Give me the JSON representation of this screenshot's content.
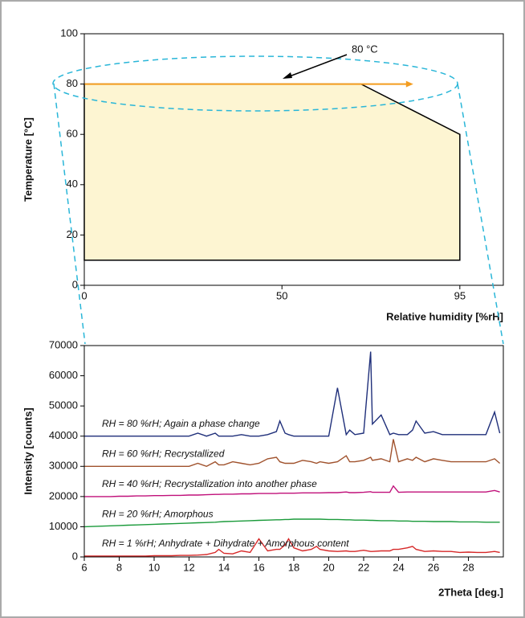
{
  "chart_data": [
    {
      "type": "area",
      "ylabel": "Temperature [°C]",
      "xlabel": "Relative humidity [%rH]",
      "xlim": [
        0,
        106
      ],
      "ylim": [
        0,
        100
      ],
      "xticks": [
        0,
        50,
        95
      ],
      "yticks": [
        0,
        20,
        40,
        60,
        80,
        100
      ],
      "region": {
        "x": [
          0,
          95,
          95,
          70,
          0
        ],
        "y": [
          10,
          10,
          60,
          80,
          80
        ],
        "color": "#fdf5d2"
      },
      "arrow": {
        "x": [
          0,
          82
        ],
        "y": [
          80,
          80
        ],
        "color": "#f39c1f"
      },
      "annotation": "80 °C"
    },
    {
      "type": "line",
      "ylabel": "Intensity [counts]",
      "xlabel": "2Theta [deg.]",
      "xlim": [
        6,
        30
      ],
      "ylim": [
        0,
        70000
      ],
      "xticks": [
        6,
        8,
        10,
        12,
        14,
        16,
        18,
        20,
        22,
        24,
        26,
        28
      ],
      "yticks": [
        0,
        10000,
        20000,
        30000,
        40000,
        50000,
        60000,
        70000
      ],
      "x": [
        6,
        6.5,
        7,
        7.5,
        8,
        8.5,
        9,
        9.5,
        10,
        10.5,
        11,
        11.5,
        12,
        12.5,
        13,
        13.5,
        13.7,
        14,
        14.5,
        15,
        15.5,
        16,
        16.5,
        17,
        17.2,
        17.5,
        17.7,
        18,
        18.5,
        19,
        19.3,
        19.5,
        20,
        20.5,
        21,
        21.2,
        21.5,
        22,
        22.4,
        22.5,
        23,
        23.5,
        23.7,
        24,
        24.5,
        24.8,
        25,
        25.5,
        26,
        26.5,
        27,
        27.5,
        28,
        28.5,
        29,
        29.5,
        29.8
      ],
      "series": [
        {
          "name": "RH = 80 %rH; Again a phase change",
          "color": "#1f2f7a",
          "values": [
            40000,
            40000,
            40000,
            40000,
            40000,
            40000,
            40000,
            40000,
            40000,
            40000,
            40000,
            40000,
            40000,
            41000,
            40000,
            41000,
            40000,
            40000,
            40000,
            40500,
            40000,
            40000,
            40500,
            41500,
            45000,
            41000,
            40500,
            40000,
            40000,
            40000,
            40000,
            40000,
            40000,
            56000,
            40500,
            42000,
            40500,
            41000,
            68000,
            44000,
            47000,
            40500,
            41000,
            40500,
            40500,
            42000,
            45000,
            41000,
            41500,
            40500,
            40500,
            40500,
            40500,
            40500,
            40500,
            48000,
            41000
          ]
        },
        {
          "name": "RH = 60 %rH; Recrystallized",
          "color": "#a0522d",
          "values": [
            30000,
            30000,
            30000,
            30000,
            30000,
            30000,
            30000,
            30000,
            30000,
            30000,
            30000,
            30000,
            30000,
            31000,
            30000,
            31500,
            30500,
            30500,
            31500,
            31000,
            30500,
            31000,
            32500,
            33000,
            31500,
            31000,
            31000,
            31000,
            32000,
            31500,
            31000,
            31500,
            31000,
            31500,
            33500,
            31500,
            31500,
            32000,
            33000,
            32000,
            32500,
            31500,
            39000,
            31500,
            32500,
            32000,
            33000,
            31500,
            32500,
            32000,
            31500,
            31500,
            31500,
            31500,
            31500,
            32500,
            31000
          ]
        },
        {
          "name": "RH = 40 %rH; Recrystallization into another phase",
          "color": "#c0107a",
          "values": [
            20000,
            20000,
            20000,
            20000,
            20100,
            20100,
            20200,
            20200,
            20300,
            20300,
            20400,
            20400,
            20500,
            20500,
            20600,
            20700,
            20700,
            20800,
            20800,
            20900,
            20900,
            21000,
            21000,
            21000,
            21100,
            21100,
            21100,
            21100,
            21200,
            21200,
            21200,
            21200,
            21300,
            21300,
            21500,
            21300,
            21300,
            21400,
            21600,
            21400,
            21400,
            21400,
            23500,
            21400,
            21500,
            21500,
            21500,
            21500,
            21500,
            21500,
            21500,
            21500,
            21500,
            21500,
            21500,
            22000,
            21500
          ]
        },
        {
          "name": "RH = 20 %rH; Amorphous",
          "color": "#1a9a3a",
          "values": [
            10000,
            10100,
            10200,
            10300,
            10400,
            10500,
            10600,
            10700,
            10800,
            10900,
            11000,
            11100,
            11200,
            11300,
            11400,
            11500,
            11600,
            11700,
            11800,
            11900,
            12000,
            12100,
            12200,
            12300,
            12300,
            12400,
            12400,
            12500,
            12500,
            12500,
            12500,
            12500,
            12400,
            12400,
            12300,
            12300,
            12200,
            12200,
            12100,
            12100,
            12000,
            12000,
            12000,
            11900,
            11900,
            11800,
            11800,
            11800,
            11700,
            11700,
            11700,
            11600,
            11600,
            11600,
            11500,
            11500,
            11500
          ]
        },
        {
          "name": "RH = 1 %rH; Anhydrate + Dihydrate + Amorphous content",
          "color": "#d62828",
          "values": [
            300,
            300,
            300,
            300,
            300,
            300,
            300,
            300,
            400,
            400,
            400,
            500,
            500,
            600,
            800,
            1500,
            2500,
            1200,
            1000,
            2000,
            1500,
            6000,
            2000,
            2500,
            2500,
            4000,
            6000,
            3000,
            2000,
            2500,
            3500,
            2500,
            2000,
            1800,
            2000,
            1800,
            1800,
            2200,
            1800,
            1800,
            2000,
            2000,
            2500,
            2500,
            3000,
            3500,
            2500,
            1800,
            2000,
            1800,
            1800,
            1500,
            1600,
            1500,
            1500,
            1800,
            1500
          ]
        }
      ]
    }
  ]
}
